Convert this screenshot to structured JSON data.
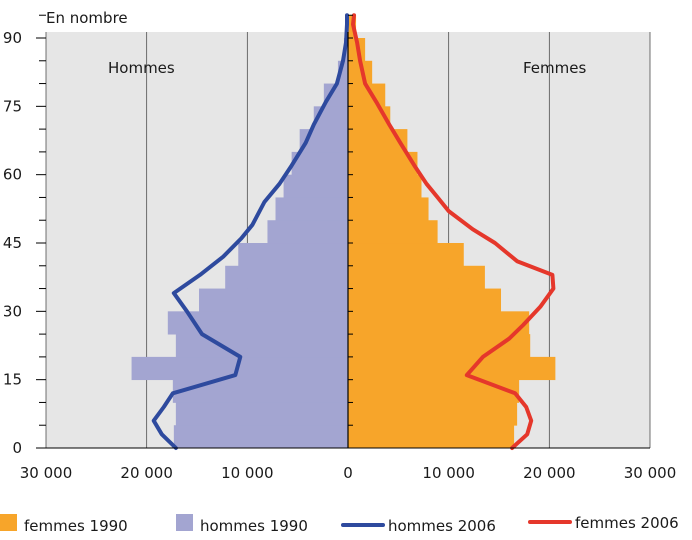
{
  "chart_data": {
    "type": "bar",
    "subtype": "population-pyramid",
    "y_unit_label": "En nombre",
    "left_panel_label": "Hommes",
    "right_panel_label": "Femmes",
    "x_tick_labels": [
      "30 000",
      "20 000",
      "10 000",
      "0",
      "10 000",
      "20 000",
      "30 000"
    ],
    "x_ticks": [
      -30000,
      -20000,
      -10000,
      0,
      10000,
      20000,
      30000
    ],
    "xlim": [
      -30000,
      30000
    ],
    "y_tick_labels": [
      "0",
      "15",
      "30",
      "45",
      "60",
      "75",
      "90"
    ],
    "y_ticks": [
      0,
      15,
      30,
      45,
      60,
      75,
      90
    ],
    "ylim": [
      0,
      96
    ],
    "age_group_size": 5,
    "grid": "vertical",
    "legend_position": "bottom",
    "colors": {
      "femmes_1990": "#f7a52a",
      "hommes_1990": "#a3a5d1",
      "hommes_2006": "#2e4a9e",
      "femmes_2006": "#e5372b",
      "plot_background": "#e6e6e6"
    },
    "series": [
      {
        "name": "femmes 1990",
        "kind": "bar",
        "side": "right",
        "age_start": [
          0,
          5,
          10,
          15,
          20,
          25,
          30,
          35,
          40,
          45,
          50,
          55,
          60,
          65,
          70,
          75,
          80,
          85,
          90
        ],
        "values": [
          16500,
          16800,
          17000,
          20600,
          18100,
          18000,
          15200,
          13600,
          11500,
          8900,
          8000,
          7300,
          6900,
          5900,
          4200,
          3700,
          2400,
          1700,
          800
        ]
      },
      {
        "name": "hommes 1990",
        "kind": "bar",
        "side": "left",
        "age_start": [
          0,
          5,
          10,
          15,
          20,
          25,
          30,
          35,
          40,
          45,
          50,
          55,
          60,
          65,
          70,
          75,
          80,
          85,
          90
        ],
        "values": [
          17300,
          17100,
          17400,
          21500,
          17100,
          17900,
          14800,
          12200,
          10900,
          8000,
          7200,
          6400,
          5600,
          4800,
          3400,
          2400,
          1000,
          400,
          200
        ]
      },
      {
        "name": "hommes 2006",
        "kind": "line",
        "side": "left",
        "points": [
          [
            0,
            17100
          ],
          [
            3,
            18500
          ],
          [
            6,
            19300
          ],
          [
            9,
            18300
          ],
          [
            12,
            17400
          ],
          [
            16,
            11200
          ],
          [
            20,
            10700
          ],
          [
            25,
            14500
          ],
          [
            30,
            16000
          ],
          [
            34,
            17300
          ],
          [
            38,
            14700
          ],
          [
            42,
            12400
          ],
          [
            46,
            10600
          ],
          [
            49,
            9500
          ],
          [
            54,
            8300
          ],
          [
            58,
            6800
          ],
          [
            62,
            5600
          ],
          [
            67,
            4200
          ],
          [
            71,
            3400
          ],
          [
            76,
            2200
          ],
          [
            80,
            1100
          ],
          [
            85,
            500
          ],
          [
            89,
            200
          ],
          [
            93,
            100
          ],
          [
            95,
            100
          ]
        ]
      },
      {
        "name": "femmes 2006",
        "kind": "line",
        "side": "right",
        "points": [
          [
            0,
            16300
          ],
          [
            3,
            17800
          ],
          [
            6,
            18200
          ],
          [
            9,
            17700
          ],
          [
            12,
            16600
          ],
          [
            16,
            11800
          ],
          [
            20,
            13400
          ],
          [
            24,
            16000
          ],
          [
            27,
            17400
          ],
          [
            31,
            19100
          ],
          [
            35,
            20400
          ],
          [
            38,
            20300
          ],
          [
            41,
            16800
          ],
          [
            45,
            14600
          ],
          [
            48,
            12400
          ],
          [
            52,
            10000
          ],
          [
            55,
            8900
          ],
          [
            58,
            7800
          ],
          [
            62,
            6600
          ],
          [
            67,
            5200
          ],
          [
            71,
            4100
          ],
          [
            76,
            2800
          ],
          [
            80,
            1700
          ],
          [
            85,
            1200
          ],
          [
            89,
            900
          ],
          [
            93,
            500
          ],
          [
            95,
            600
          ]
        ]
      }
    ]
  },
  "legend": {
    "items": [
      {
        "label": "femmes 1990",
        "kind": "square",
        "color": "#f7a52a"
      },
      {
        "label": "hommes 1990",
        "kind": "square",
        "color": "#a3a5d1"
      },
      {
        "label": "hommes 2006",
        "kind": "line",
        "color": "#2e4a9e"
      },
      {
        "label": "femmes 2006",
        "kind": "line",
        "color": "#e5372b"
      }
    ]
  }
}
